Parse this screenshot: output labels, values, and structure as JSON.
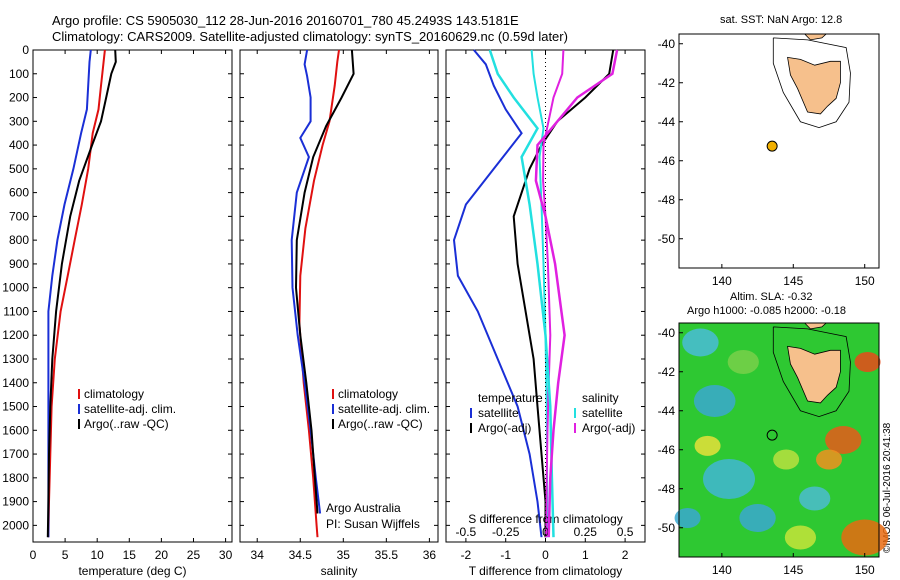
{
  "title_line1": "Argo profile: CS 5905030_112 28-Jun-2016 20160701_780 45.2493S 143.5181E",
  "title_line2": "Climatology: CARS2009. Satellite-adjusted climatology: synTS_20160629.nc (0.59d later)",
  "map_sst_title": "sat. SST: NaN Argo: 12.8",
  "map_sla_title_line1": "Altim. SLA: -0.32",
  "map_sla_title_line2": "Argo h1000: -0.085 h2000: -0.18",
  "credit": "©IMOS 06-Jul-2016 20:41:38",
  "colors": {
    "climatology": "#e01010",
    "satellite": "#1a2fd6",
    "argo": "#000000",
    "sal_sat": "#22e0e0",
    "sal_argo": "#e020e0",
    "land": "#f6c08c",
    "marker": "#f2b000"
  },
  "chart_data": [
    {
      "type": "line",
      "panel": "temperature",
      "xlabel": "temperature (deg C)",
      "ylabel": "",
      "xlim": [
        0,
        31
      ],
      "ylim": [
        2070,
        0
      ],
      "xticks": [
        0,
        5,
        10,
        15,
        20,
        25,
        30
      ],
      "yticks": [
        0,
        100,
        200,
        300,
        400,
        500,
        600,
        700,
        800,
        900,
        1000,
        1100,
        1200,
        1300,
        1400,
        1500,
        1600,
        1700,
        1800,
        1900,
        2000
      ],
      "legend": [
        "climatology",
        "satellite-adj. clim.",
        "Argo(..raw -QC)"
      ],
      "series": [
        {
          "name": "climatology",
          "color": "climatology",
          "points": [
            [
              11.2,
              0
            ],
            [
              11.0,
              50
            ],
            [
              10.6,
              150
            ],
            [
              10.2,
              250
            ],
            [
              9.3,
              350
            ],
            [
              8.6,
              500
            ],
            [
              7.6,
              650
            ],
            [
              6.5,
              800
            ],
            [
              5.4,
              950
            ],
            [
              4.3,
              1100
            ],
            [
              3.4,
              1300
            ],
            [
              2.9,
              1500
            ],
            [
              2.7,
              1700
            ],
            [
              2.5,
              1900
            ],
            [
              2.4,
              2050
            ]
          ]
        },
        {
          "name": "satellite-adj. clim.",
          "color": "satellite",
          "points": [
            [
              9.0,
              0
            ],
            [
              8.8,
              50
            ],
            [
              8.6,
              150
            ],
            [
              8.4,
              250
            ],
            [
              7.5,
              350
            ],
            [
              6.3,
              500
            ],
            [
              4.9,
              650
            ],
            [
              3.8,
              800
            ],
            [
              3.0,
              950
            ],
            [
              2.4,
              1100
            ],
            [
              2.4,
              1300
            ],
            [
              2.4,
              1500
            ],
            [
              2.4,
              1700
            ],
            [
              2.4,
              1900
            ],
            [
              2.4,
              2050
            ]
          ]
        },
        {
          "name": "Argo(..raw -QC)",
          "color": "argo",
          "points": [
            [
              12.8,
              0
            ],
            [
              12.9,
              50
            ],
            [
              12.2,
              100
            ],
            [
              11.4,
              200
            ],
            [
              10.6,
              300
            ],
            [
              9.2,
              400
            ],
            [
              7.2,
              550
            ],
            [
              5.8,
              700
            ],
            [
              4.5,
              900
            ],
            [
              3.6,
              1100
            ],
            [
              3.0,
              1300
            ],
            [
              2.7,
              1500
            ],
            [
              2.5,
              1700
            ],
            [
              2.4,
              1900
            ],
            [
              2.3,
              2050
            ]
          ]
        }
      ]
    },
    {
      "type": "line",
      "panel": "salinity",
      "xlabel": "salinity",
      "ylabel": "",
      "xlim": [
        33.8,
        36.1
      ],
      "ylim": [
        2070,
        0
      ],
      "xticks": [
        34,
        34.5,
        35,
        35.5,
        36
      ],
      "legend": [
        "climatology",
        "satellite-adj. clim.",
        "Argo(..raw -QC)"
      ],
      "annotation": [
        "Argo Australia",
        "PI: Susan Wijffels"
      ],
      "series": [
        {
          "name": "climatology",
          "color": "climatology",
          "points": [
            [
              34.95,
              0
            ],
            [
              34.93,
              50
            ],
            [
              34.9,
              150
            ],
            [
              34.84,
              300
            ],
            [
              34.76,
              400
            ],
            [
              34.66,
              550
            ],
            [
              34.56,
              750
            ],
            [
              34.5,
              950
            ],
            [
              34.49,
              1150
            ],
            [
              34.54,
              1400
            ],
            [
              34.6,
              1600
            ],
            [
              34.65,
              1800
            ],
            [
              34.69,
              2000
            ],
            [
              34.7,
              2050
            ]
          ]
        },
        {
          "name": "satellite-adj. clim.",
          "color": "satellite",
          "points": [
            [
              34.58,
              0
            ],
            [
              34.55,
              60
            ],
            [
              34.58,
              110
            ],
            [
              34.62,
              200
            ],
            [
              34.62,
              300
            ],
            [
              34.5,
              370
            ],
            [
              34.6,
              450
            ],
            [
              34.46,
              600
            ],
            [
              34.4,
              800
            ],
            [
              34.41,
              1000
            ],
            [
              34.47,
              1200
            ],
            [
              34.55,
              1400
            ],
            [
              34.62,
              1600
            ],
            [
              34.68,
              1800
            ],
            [
              34.73,
              1950
            ]
          ]
        },
        {
          "name": "Argo(..raw -QC)",
          "color": "argo",
          "points": [
            [
              35.1,
              0
            ],
            [
              35.12,
              100
            ],
            [
              34.98,
              200
            ],
            [
              34.8,
              320
            ],
            [
              34.65,
              450
            ],
            [
              34.55,
              600
            ],
            [
              34.46,
              800
            ],
            [
              34.45,
              1000
            ],
            [
              34.5,
              1200
            ],
            [
              34.57,
              1400
            ],
            [
              34.63,
              1600
            ],
            [
              34.67,
              1800
            ],
            [
              34.7,
              1950
            ]
          ]
        }
      ]
    },
    {
      "type": "line",
      "panel": "difference",
      "xlabel": "T difference from climatology",
      "xlabel_top": "S difference from climatology",
      "xlim": [
        -2.5,
        2.5
      ],
      "ylim": [
        2070,
        0
      ],
      "xticks": [
        -2,
        -1,
        0,
        1,
        2
      ],
      "sticks": [
        -0.5,
        -0.25,
        0,
        0.25,
        0.5
      ],
      "legend_temperature": [
        "temperature",
        "satellite",
        "Argo(-adj)"
      ],
      "legend_salinity": [
        "salinity",
        "satellite",
        "Argo(-adj)"
      ],
      "series": [
        {
          "name": "T satellite",
          "color": "satellite",
          "points": [
            [
              -1.8,
              0
            ],
            [
              -1.5,
              60
            ],
            [
              -1.3,
              150
            ],
            [
              -1.0,
              250
            ],
            [
              -0.6,
              350
            ],
            [
              -1.3,
              500
            ],
            [
              -2.0,
              650
            ],
            [
              -2.3,
              800
            ],
            [
              -2.2,
              950
            ],
            [
              -1.7,
              1100
            ],
            [
              -1.2,
              1300
            ],
            [
              -0.7,
              1500
            ],
            [
              -0.4,
              1700
            ],
            [
              -0.2,
              1900
            ],
            [
              -0.1,
              2050
            ]
          ]
        },
        {
          "name": "T Argo(-adj)",
          "color": "argo",
          "points": [
            [
              1.7,
              0
            ],
            [
              1.6,
              100
            ],
            [
              1.0,
              200
            ],
            [
              0.3,
              300
            ],
            [
              -0.1,
              400
            ],
            [
              -0.4,
              500
            ],
            [
              -0.8,
              700
            ],
            [
              -0.7,
              900
            ],
            [
              -0.5,
              1100
            ],
            [
              -0.3,
              1300
            ],
            [
              -0.2,
              1500
            ],
            [
              -0.1,
              1700
            ],
            [
              0.0,
              1900
            ],
            [
              0.0,
              2050
            ]
          ]
        },
        {
          "name": "S satellite",
          "color": "sal_sat",
          "points": [
            [
              -0.35,
              0
            ],
            [
              -0.3,
              100
            ],
            [
              -0.2,
              200
            ],
            [
              -0.05,
              330
            ],
            [
              -0.15,
              450
            ],
            [
              -0.1,
              650
            ],
            [
              -0.05,
              900
            ],
            [
              0.0,
              1200
            ],
            [
              0.03,
              1500
            ],
            [
              0.04,
              1800
            ],
            [
              0.05,
              2050
            ]
          ]
        },
        {
          "name": "S Argo(-adj)",
          "color": "sal_argo",
          "points": [
            [
              0.45,
              0
            ],
            [
              0.42,
              100
            ],
            [
              0.2,
              200
            ],
            [
              0.05,
              320
            ],
            [
              -0.05,
              400
            ],
            [
              -0.06,
              550
            ],
            [
              0.0,
              700
            ],
            [
              0.06,
              900
            ],
            [
              0.1,
              1100
            ],
            [
              0.12,
              1200
            ],
            [
              0.08,
              1400
            ],
            [
              0.05,
              1600
            ],
            [
              0.03,
              1800
            ],
            [
              0.02,
              2050
            ]
          ]
        }
      ]
    },
    {
      "type": "scatter",
      "panel": "map_sst",
      "xlim": [
        137,
        151
      ],
      "ylim": [
        -51.5,
        -39.5
      ],
      "xticks": [
        140,
        145,
        150
      ],
      "yticks": [
        -40,
        -42,
        -44,
        -46,
        -48,
        -50
      ],
      "points": [
        {
          "x": 143.52,
          "y": -45.25
        }
      ]
    },
    {
      "type": "heatmap",
      "panel": "map_sla",
      "xlim": [
        137,
        151
      ],
      "ylim": [
        -51.5,
        -39.5
      ],
      "xticks": [
        140,
        145,
        150
      ],
      "yticks": [
        -40,
        -42,
        -44,
        -46,
        -48,
        -50
      ],
      "points": [
        {
          "x": 143.52,
          "y": -45.25
        }
      ]
    }
  ]
}
